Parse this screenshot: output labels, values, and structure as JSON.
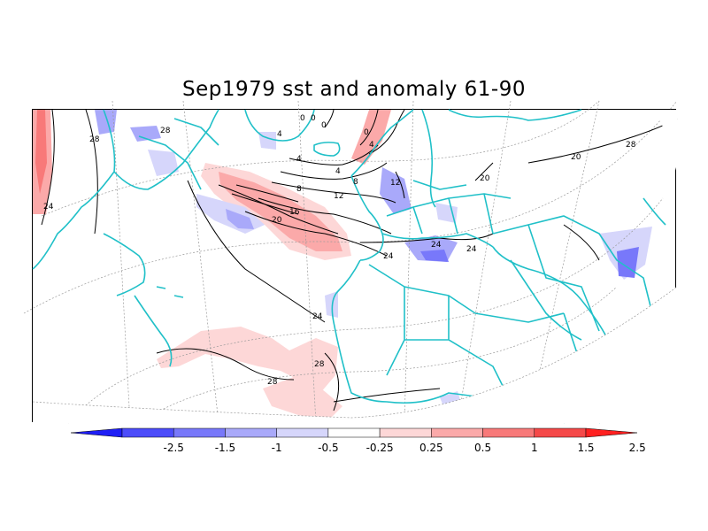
{
  "title": "Sep1979 sst and anomaly 61-90",
  "colors": {
    "coast": "#20c0c8",
    "contour": "#000000",
    "grid": "#9a9a9a",
    "pos": [
      "#fdd7d7",
      "#fba9a9",
      "#f87979",
      "#f54949",
      "#ff2020"
    ],
    "neg": [
      "#d6d6fb",
      "#a9a9fa",
      "#7878fa",
      "#4c4cfa",
      "#1e1ef5"
    ]
  },
  "contour_labels": [
    "28",
    "28",
    "24",
    "24",
    "24",
    "24",
    "24",
    "20",
    "20",
    "16",
    "12",
    "8",
    "8",
    "4",
    "4",
    "4",
    "4",
    "0",
    "0",
    "0",
    "0",
    "12",
    "28",
    "28",
    "28",
    "20"
  ],
  "colorbar": {
    "tick_labels": [
      "-2.5",
      "-1.5",
      "-1",
      "-0.5",
      "-0.25",
      "0.25",
      "0.5",
      "1",
      "1.5",
      "2.5"
    ],
    "bins": [
      "#1e1ef5",
      "#4c4cfa",
      "#7878fa",
      "#a9a9fa",
      "#d6d6fb",
      "#ffffff",
      "#fdd7d7",
      "#fba9a9",
      "#f87979",
      "#f54949",
      "#ff2020"
    ]
  }
}
